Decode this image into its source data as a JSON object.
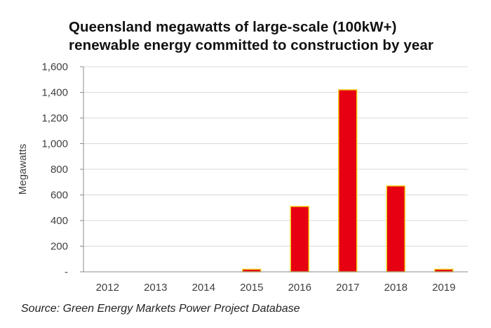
{
  "chart_data": {
    "type": "bar",
    "title_lines": [
      "Queensland megawatts of large-scale (100kW+)",
      "renewable energy committed to construction by year"
    ],
    "ylabel": "Megawatts",
    "xlabel": "",
    "categories": [
      "2012",
      "2013",
      "2014",
      "2015",
      "2016",
      "2017",
      "2018",
      "2019"
    ],
    "values": [
      0,
      0,
      0,
      20,
      510,
      1420,
      670,
      20
    ],
    "ylim": [
      0,
      1600
    ],
    "yticks": [
      0,
      200,
      400,
      600,
      800,
      1000,
      1200,
      1400,
      1600
    ],
    "ytick_labels": [
      "-",
      "200",
      "400",
      "600",
      "800",
      "1,000",
      "1,200",
      "1,400",
      "1,600"
    ],
    "grid": "horizontal",
    "bar_color": "#e60012",
    "bar_edge_color": "#f2d21b",
    "grid_color": "#d9d9d9"
  },
  "source": "Source: Green Energy Markets Power Project Database"
}
